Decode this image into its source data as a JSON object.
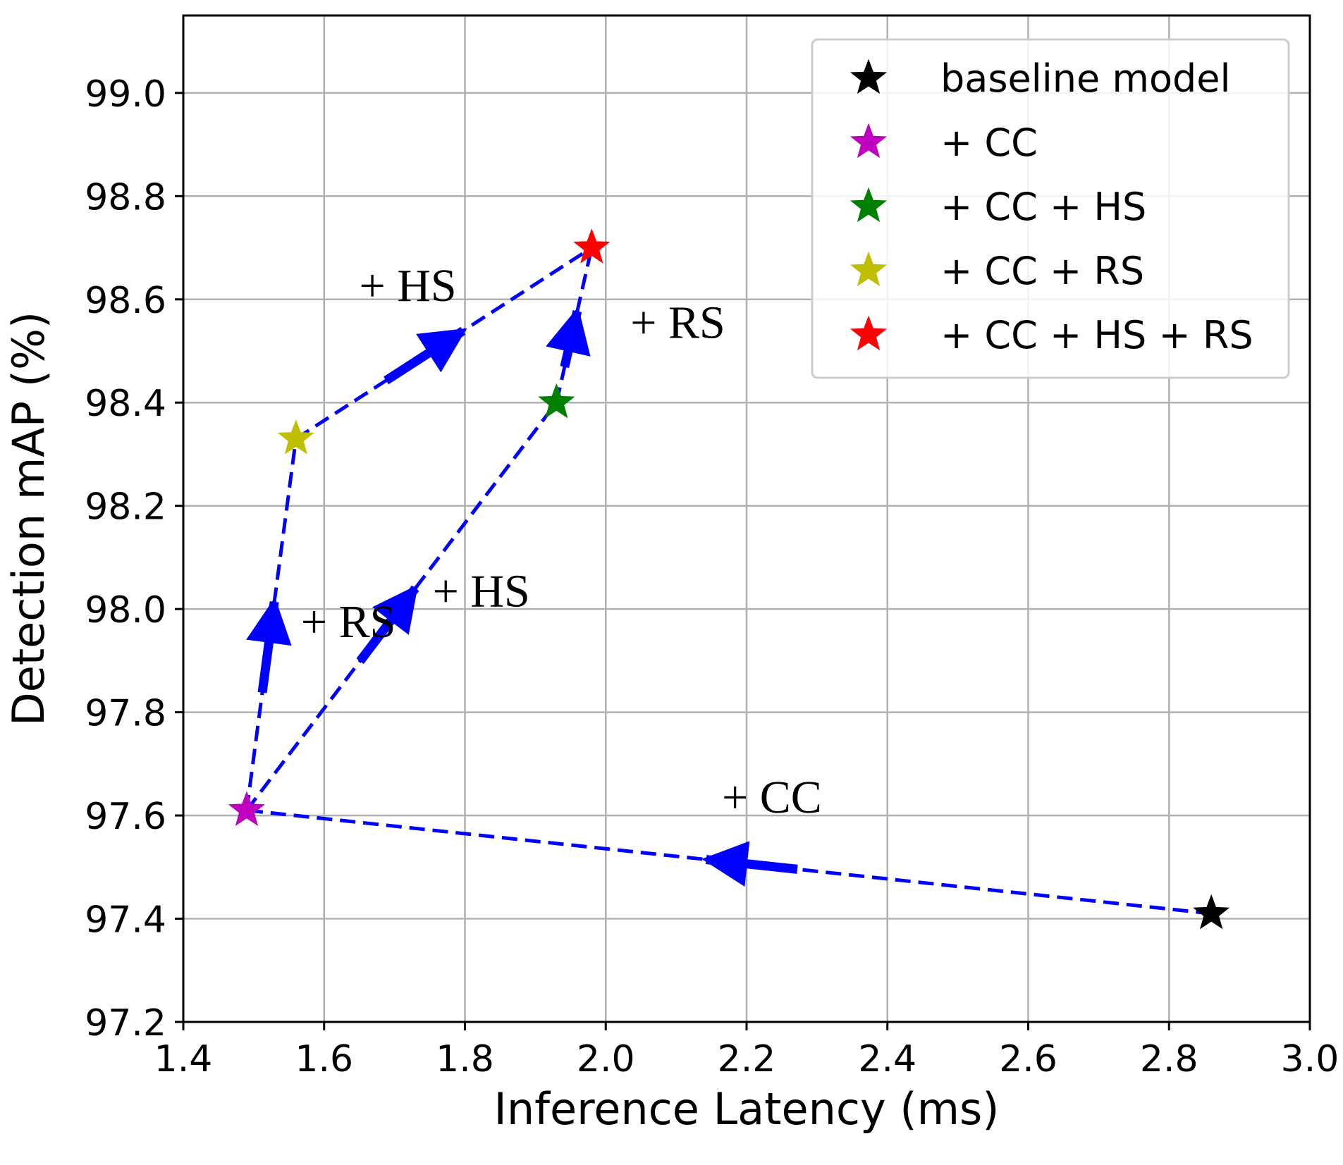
{
  "chart_data": {
    "type": "scatter",
    "xlabel": "Inference Latency (ms)",
    "ylabel": "Detection mAP (%)",
    "xlim": [
      1.4,
      3.0
    ],
    "ylim": [
      97.2,
      99.15
    ],
    "xticks": [
      "1.4",
      "1.6",
      "1.8",
      "2.0",
      "2.2",
      "2.4",
      "2.6",
      "2.8",
      "3.0"
    ],
    "yticks": [
      "97.2",
      "97.4",
      "97.6",
      "97.8",
      "98.0",
      "98.2",
      "98.4",
      "98.6",
      "98.8",
      "99.0"
    ],
    "grid": true,
    "legend_position": "top-right",
    "points": [
      {
        "name": "baseline model",
        "x": 2.86,
        "y": 97.41,
        "color": "#000000"
      },
      {
        "name": "+ CC",
        "x": 1.49,
        "y": 97.61,
        "color": "#bf00bf"
      },
      {
        "name": "+ CC + HS",
        "x": 1.93,
        "y": 98.4,
        "color": "#008000"
      },
      {
        "name": "+ CC + RS",
        "x": 1.56,
        "y": 98.33,
        "color": "#bfbf00"
      },
      {
        "name": "+ CC + HS + RS",
        "x": 1.98,
        "y": 98.7,
        "color": "#ff0000"
      }
    ],
    "transitions": [
      {
        "from": 0,
        "to": 1,
        "label": "+ CC"
      },
      {
        "from": 1,
        "to": 3,
        "label": "+ RS"
      },
      {
        "from": 1,
        "to": 2,
        "label": "+ HS"
      },
      {
        "from": 3,
        "to": 4,
        "label": "+ HS"
      },
      {
        "from": 2,
        "to": 4,
        "label": "+ RS"
      }
    ],
    "line_color": "#0000ff"
  }
}
